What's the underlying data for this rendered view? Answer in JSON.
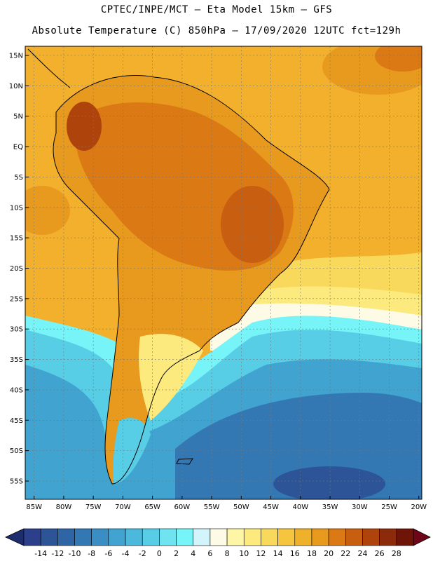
{
  "header": {
    "line1": "CPTEC/INPE/MCT –  Eta Model 15km – GFS",
    "line2": "Absolute Temperature (C) 850hPa – 17/09/2020 12UTC fct=129h"
  },
  "map": {
    "lat_labels": [
      "15N",
      "10N",
      "5N",
      "EQ",
      "5S",
      "10S",
      "15S",
      "20S",
      "25S",
      "30S",
      "35S",
      "40S",
      "45S",
      "50S",
      "55S"
    ],
    "lon_labels": [
      "85W",
      "80W",
      "75W",
      "70W",
      "65W",
      "60W",
      "55W",
      "50W",
      "45W",
      "40W",
      "35W",
      "30W",
      "25W",
      "20W"
    ],
    "lat_values": [
      15,
      10,
      5,
      0,
      -5,
      -10,
      -15,
      -20,
      -25,
      -30,
      -35,
      -40,
      -45,
      -50,
      -55
    ],
    "lon_values": [
      -85,
      -80,
      -75,
      -70,
      -65,
      -60,
      -55,
      -50,
      -45,
      -40,
      -35,
      -30,
      -25,
      -20
    ],
    "lat_range": [
      -58,
      16.5
    ],
    "lon_range": [
      -86.5,
      -19.5
    ]
  },
  "colorbar": {
    "labels": [
      "-14",
      "-12",
      "-10",
      "-8",
      "-6",
      "-4",
      "-2",
      "0",
      "2",
      "4",
      "6",
      "8",
      "10",
      "12",
      "14",
      "16",
      "18",
      "20",
      "22",
      "24",
      "26",
      "28"
    ],
    "colors": [
      "#2b3f8a",
      "#2c5496",
      "#2f65a5",
      "#3478b3",
      "#3b8ec3",
      "#41a3cf",
      "#4bb8dc",
      "#58cde6",
      "#6fe3f0",
      "#76f4f7",
      "#d2f4fa",
      "#fdfbe5",
      "#fdf6a6",
      "#fcea7f",
      "#f9d95c",
      "#f5c53f",
      "#efb02a",
      "#e89a1f",
      "#db7a15",
      "#c85f10",
      "#ae440c",
      "#8c2b0b",
      "#6e1508"
    ],
    "arrow_left": "#1e2d6e",
    "arrow_right": "#6e0518"
  }
}
